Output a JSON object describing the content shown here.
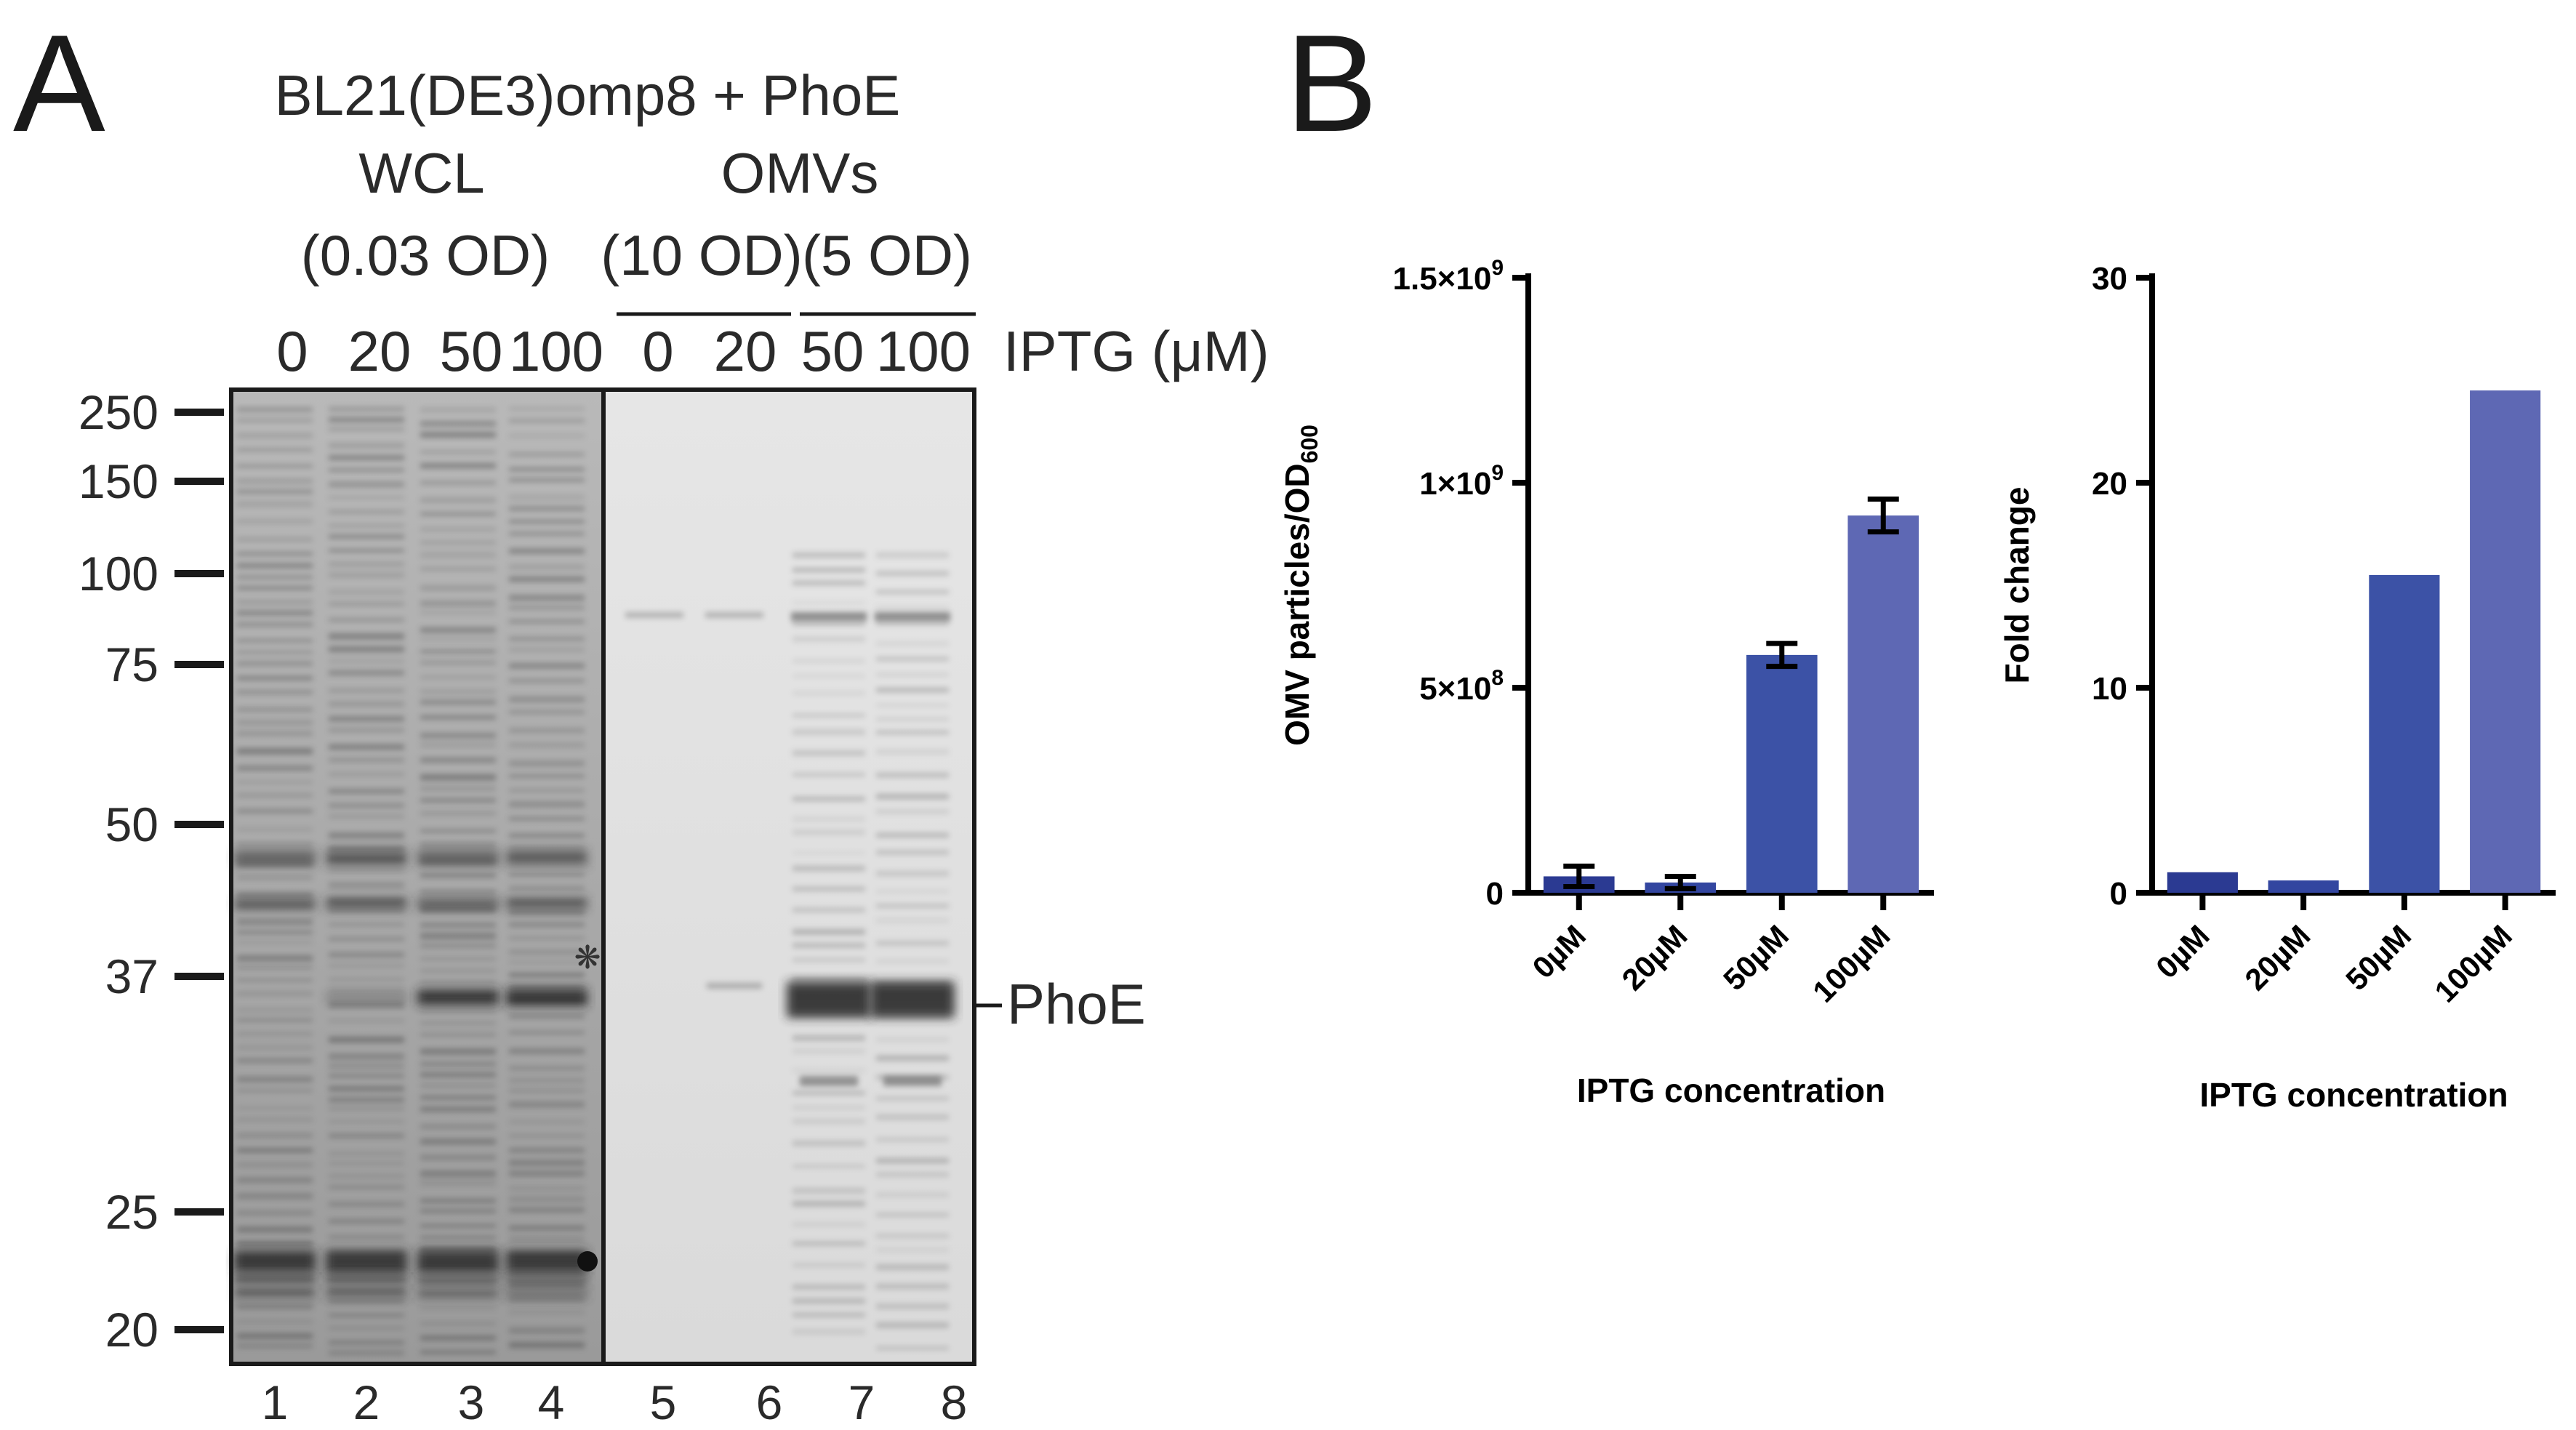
{
  "panel_a": {
    "letter": "A",
    "title": "BL21(DE3)omp8 + PhoE",
    "group_wcl": "WCL",
    "group_omvs": "OMVs",
    "load_wcl": "(0.03 OD)",
    "load_omv_10": "(10 OD)",
    "load_omv_5": "(5 OD)",
    "iptg_values": [
      "0",
      "20",
      "50",
      "100",
      "0",
      "20",
      "50",
      "100"
    ],
    "iptg_label": "IPTG (μM)",
    "mw_markers": [
      "250",
      "150",
      "100",
      "75",
      "50",
      "37",
      "25",
      "20"
    ],
    "lane_numbers": [
      "1",
      "2",
      "3",
      "4",
      "5",
      "6",
      "7",
      "8"
    ],
    "band_label": "PhoE",
    "asterisk_symbol": "❋"
  },
  "panel_b": {
    "letter": "B"
  },
  "chart_data": [
    {
      "type": "bar",
      "categories": [
        "0µM",
        "20µM",
        "50µM",
        "100µM"
      ],
      "values": [
        40000000,
        25000000,
        580000000,
        920000000
      ],
      "errors": [
        25000000,
        15000000,
        28000000,
        40000000
      ],
      "colors": [
        "#2b3a92",
        "#3346a0",
        "#3c52a6",
        "#5e68b4"
      ],
      "xlabel": "IPTG concentration",
      "ylabel": "OMV particles/OD600",
      "ylim": [
        0,
        1500000000
      ],
      "ytick_values": [
        0,
        500000000,
        1000000000,
        1500000000
      ],
      "ytick_labels": [
        "0",
        "5×10^8",
        "1×10^9",
        "1.5×10^9"
      ]
    },
    {
      "type": "bar",
      "categories": [
        "0µM",
        "20µM",
        "50µM",
        "100µM"
      ],
      "values": [
        1.0,
        0.6,
        15.5,
        24.5
      ],
      "colors": [
        "#2b3a92",
        "#3346a0",
        "#3c52a6",
        "#5e68b4"
      ],
      "xlabel": "IPTG concentration",
      "ylabel": "Fold change",
      "ylim": [
        0,
        30
      ],
      "ytick_values": [
        0,
        10,
        20,
        30
      ],
      "ytick_labels": [
        "0",
        "10",
        "20",
        "30"
      ]
    }
  ]
}
